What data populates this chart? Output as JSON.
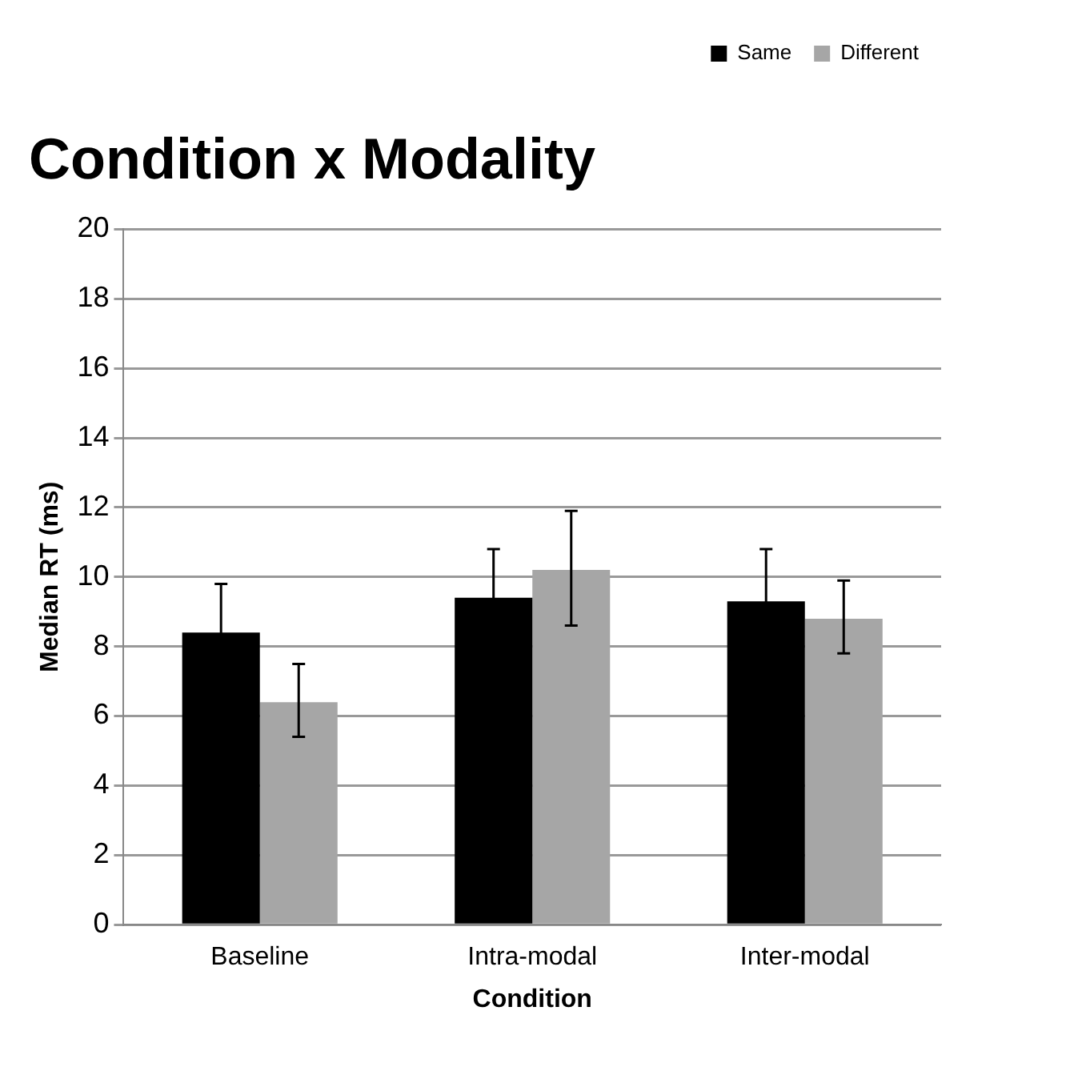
{
  "chart_data": {
    "type": "bar",
    "title": "Condition x Modality",
    "xlabel": "Condition",
    "ylabel": "Median RT (ms)",
    "categories": [
      "Baseline",
      "Intra-modal",
      "Inter-modal"
    ],
    "series": [
      {
        "name": "Same",
        "color": "#000000",
        "values": [
          8.4,
          9.4,
          9.3
        ],
        "errors": [
          1.4,
          1.4,
          1.5
        ]
      },
      {
        "name": "Different",
        "color": "#a6a6a6",
        "values": [
          6.4,
          10.2,
          8.8
        ],
        "errors": [
          [
            5.4,
            7.5
          ],
          [
            8.6,
            11.9
          ],
          [
            7.8,
            9.9
          ]
        ]
      }
    ],
    "ylim": [
      0,
      20
    ],
    "yticks": [
      0,
      2,
      4,
      6,
      8,
      10,
      12,
      14,
      16,
      18,
      20
    ],
    "grid": "y",
    "legend": "top right"
  }
}
